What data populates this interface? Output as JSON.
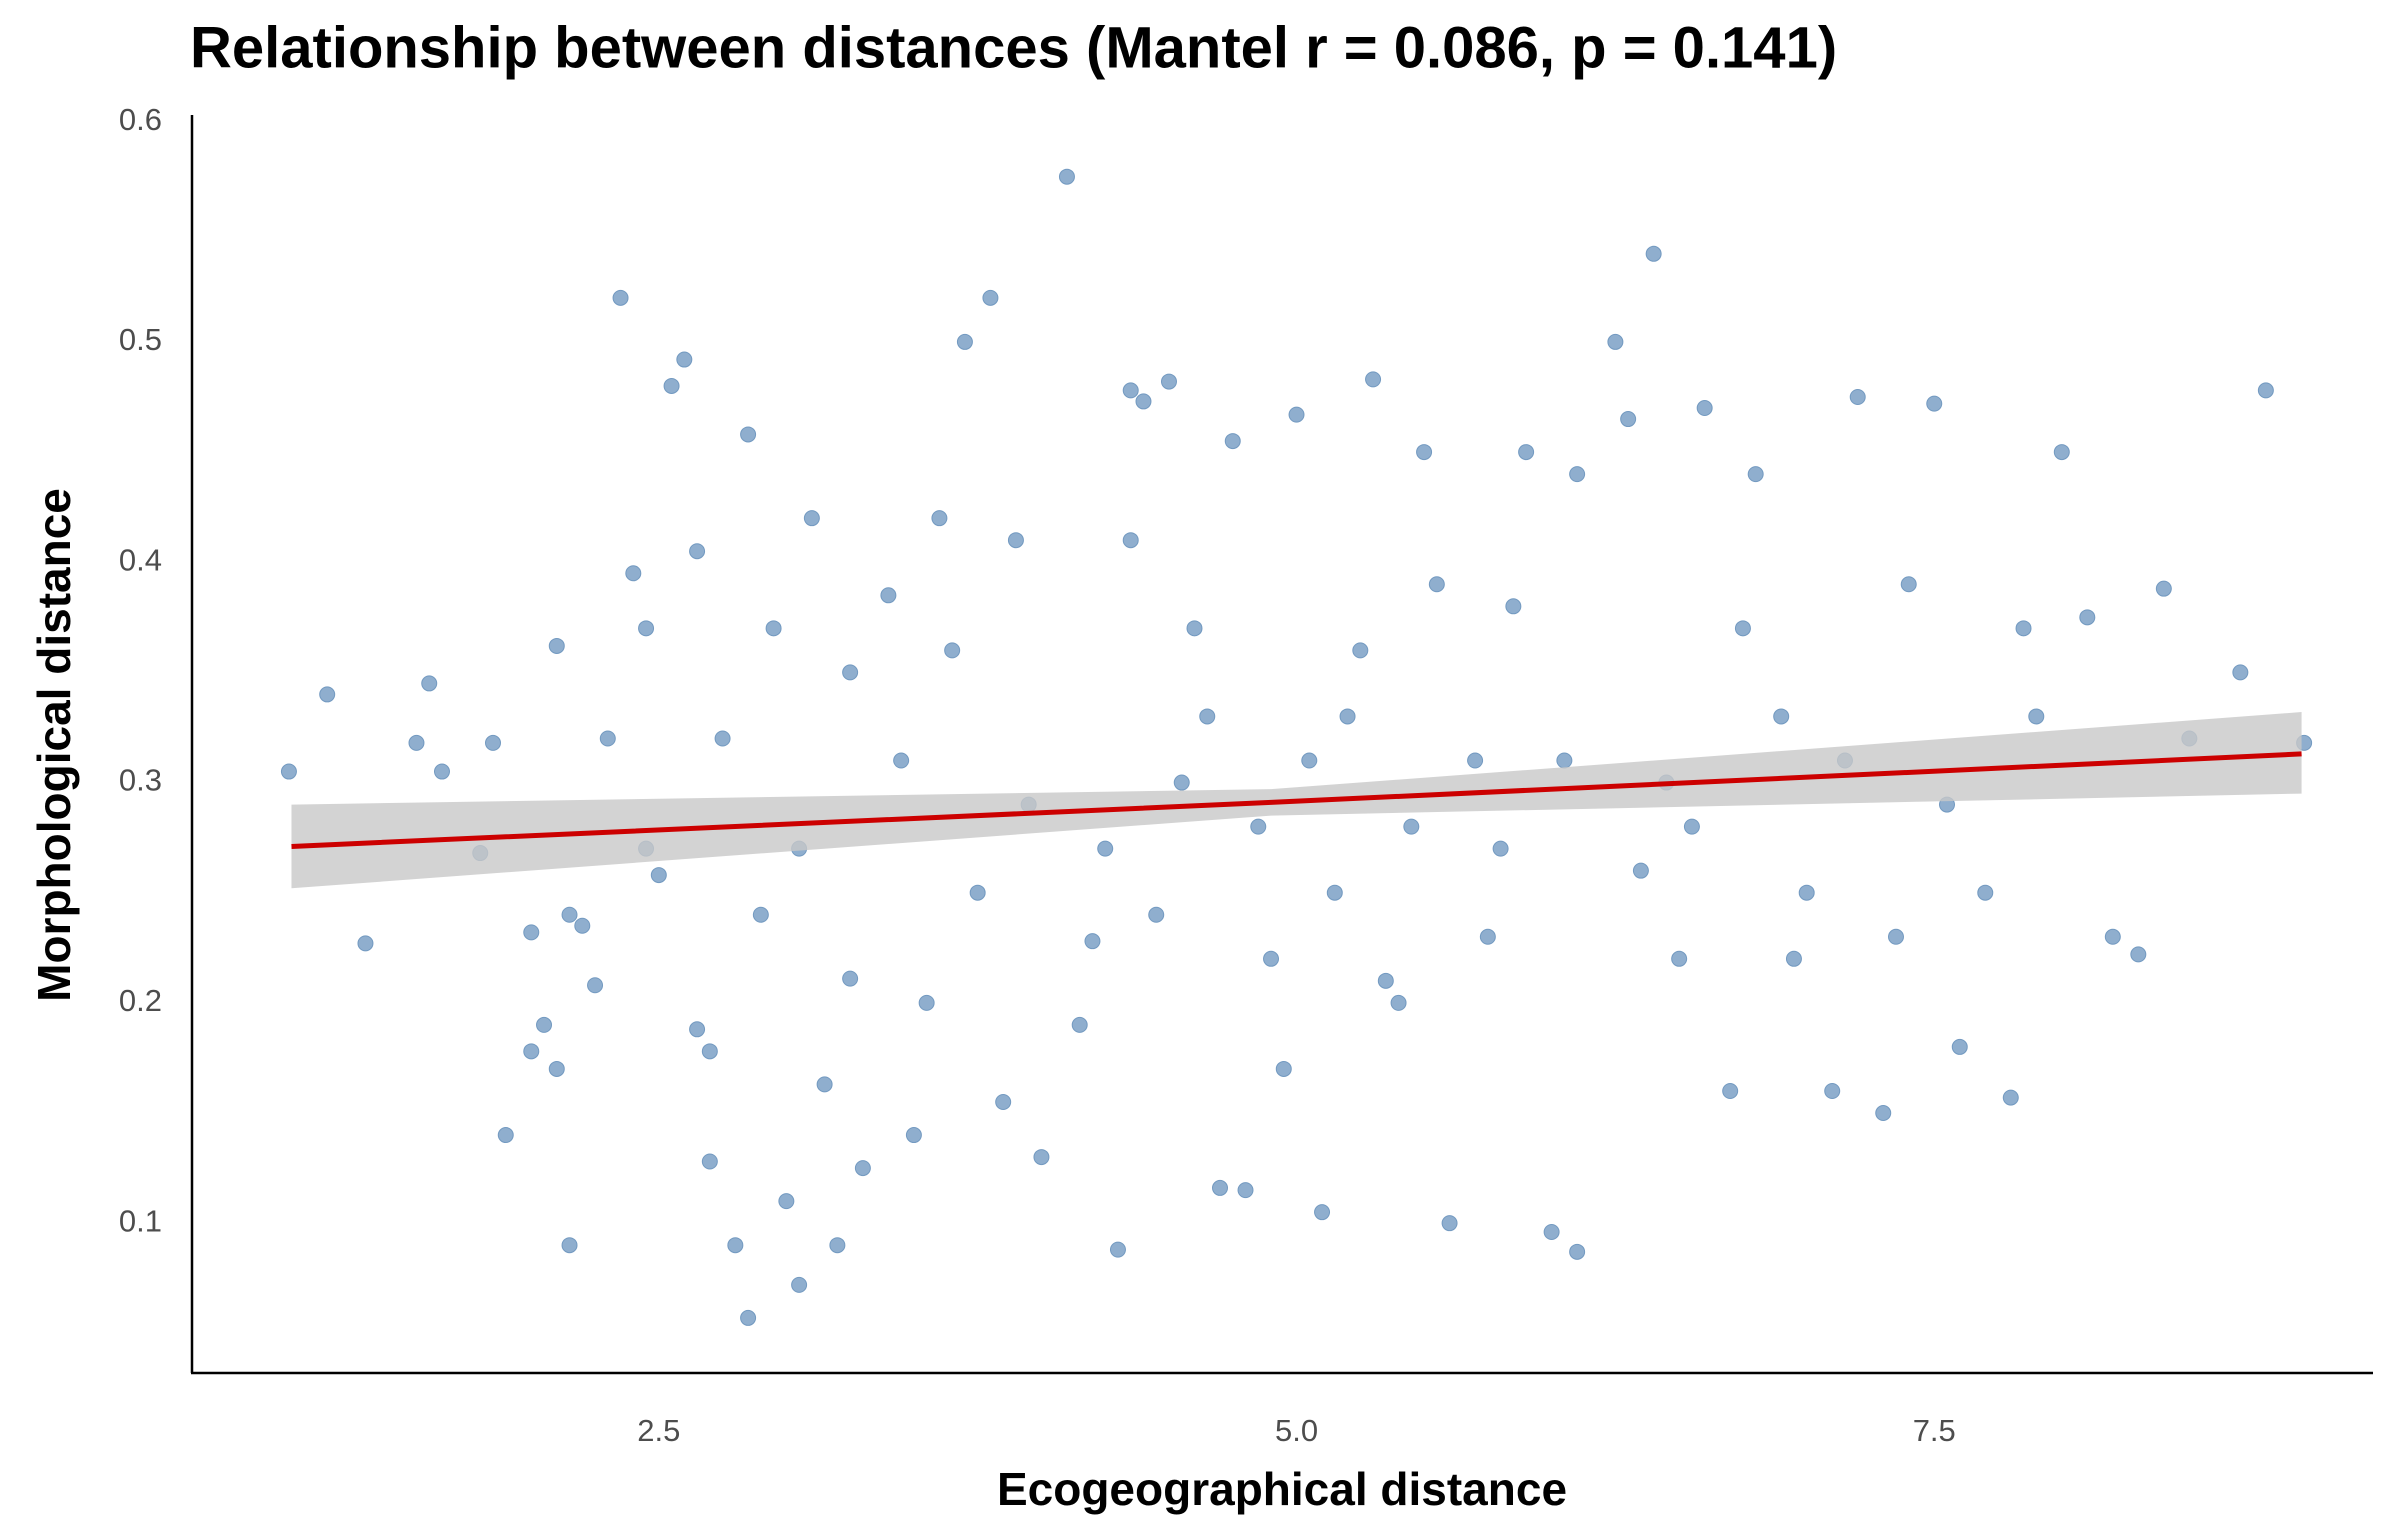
{
  "chart_data": {
    "type": "scatter",
    "title": "Relationship between distances (Mantel r = 0.086, p = 0.141)",
    "x_label": "Ecogeographical distance",
    "y_label": "Morphological distance",
    "xlim": [
      0.67,
      9.22
    ],
    "ylim": [
      0.032,
      0.603
    ],
    "xticks": [
      2.5,
      {
        "value": 5,
        "label": "5.0"
      },
      7.5
    ],
    "yticks": [
      0.1,
      0.2,
      0.3,
      0.4,
      0.5,
      0.6
    ],
    "grid": false,
    "series": [
      {
        "color": "#6a93bd",
        "x": [
          1.05,
          1.2,
          1.35,
          1.55,
          1.6,
          1.65,
          1.8,
          1.85,
          1.9,
          2.0,
          2.0,
          2.05,
          2.1,
          2.1,
          2.15,
          2.15,
          2.2,
          2.25,
          2.3,
          2.35,
          2.4,
          2.45,
          2.5,
          2.55,
          2.6,
          2.65,
          2.65,
          2.7,
          2.7,
          2.8,
          2.85,
          2.85,
          2.9,
          2.95,
          3.0,
          3.05,
          3.1,
          3.15,
          3.2,
          3.25,
          3.3,
          3.4,
          3.5,
          3.6,
          3.65,
          3.7,
          3.8,
          3.85,
          3.9,
          4.0,
          4.1,
          4.2,
          4.3,
          4.35,
          4.4,
          4.5,
          4.6,
          4.7,
          4.75,
          4.8,
          4.9,
          5.0,
          5.1,
          5.2,
          5.3,
          5.4,
          5.5,
          5.6,
          5.7,
          5.8,
          5.9,
          6.0,
          6.1,
          6.1,
          6.25,
          6.3,
          6.4,
          6.5,
          6.6,
          6.7,
          6.8,
          6.9,
          7.0,
          7.1,
          7.2,
          7.3,
          7.4,
          7.5,
          7.6,
          7.7,
          7.8,
          7.9,
          8.0,
          8.1,
          8.2,
          8.3,
          8.4,
          8.5,
          8.7,
          8.8,
          8.95,
          5.15,
          4.85,
          5.05,
          4.55,
          4.45,
          5.25,
          4.65,
          5.45,
          4.25,
          5.75,
          3.95,
          6.05,
          3.75,
          6.35,
          3.45,
          6.55,
          3.25,
          6.75,
          4.15,
          5.35,
          4.95,
          5.55,
          4.35,
          5.85,
          6.45,
          7.15,
          7.55,
          7.85,
          3.05,
          2.75,
          2.45,
          3.55,
          6.95,
          7.35
        ],
        "y": [
          0.305,
          0.34,
          0.227,
          0.318,
          0.345,
          0.305,
          0.268,
          0.318,
          0.14,
          0.232,
          0.178,
          0.19,
          0.362,
          0.17,
          0.09,
          0.24,
          0.235,
          0.208,
          0.32,
          0.52,
          0.395,
          0.37,
          0.258,
          0.48,
          0.492,
          0.405,
          0.188,
          0.128,
          0.178,
          0.09,
          0.057,
          0.458,
          0.24,
          0.37,
          0.11,
          0.072,
          0.42,
          0.163,
          0.09,
          0.211,
          0.125,
          0.385,
          0.14,
          0.42,
          0.36,
          0.5,
          0.52,
          0.155,
          0.41,
          0.13,
          0.575,
          0.228,
          0.088,
          0.478,
          0.473,
          0.482,
          0.37,
          0.116,
          0.455,
          0.115,
          0.22,
          0.467,
          0.105,
          0.33,
          0.483,
          0.2,
          0.45,
          0.1,
          0.31,
          0.27,
          0.45,
          0.096,
          0.087,
          0.44,
          0.5,
          0.465,
          0.54,
          0.22,
          0.47,
          0.16,
          0.44,
          0.33,
          0.25,
          0.16,
          0.475,
          0.15,
          0.39,
          0.472,
          0.18,
          0.25,
          0.157,
          0.33,
          0.45,
          0.375,
          0.23,
          0.222,
          0.388,
          0.32,
          0.35,
          0.478,
          0.318,
          0.25,
          0.28,
          0.31,
          0.3,
          0.24,
          0.36,
          0.33,
          0.28,
          0.27,
          0.23,
          0.29,
          0.31,
          0.25,
          0.26,
          0.31,
          0.28,
          0.35,
          0.37,
          0.19,
          0.21,
          0.17,
          0.39,
          0.41,
          0.38,
          0.3,
          0.31,
          0.29,
          0.37,
          0.27,
          0.32,
          0.27,
          0.2,
          0.22,
          0.23
        ]
      }
    ],
    "fit": {
      "color": "#cc0000",
      "band_color": "#c8c8c8",
      "x": [
        1.06,
        4.9,
        8.94
      ],
      "y": [
        0.271,
        0.291,
        0.313
      ],
      "lower": [
        0.252,
        0.285,
        0.295
      ],
      "upper": [
        0.29,
        0.297,
        0.332
      ]
    }
  }
}
